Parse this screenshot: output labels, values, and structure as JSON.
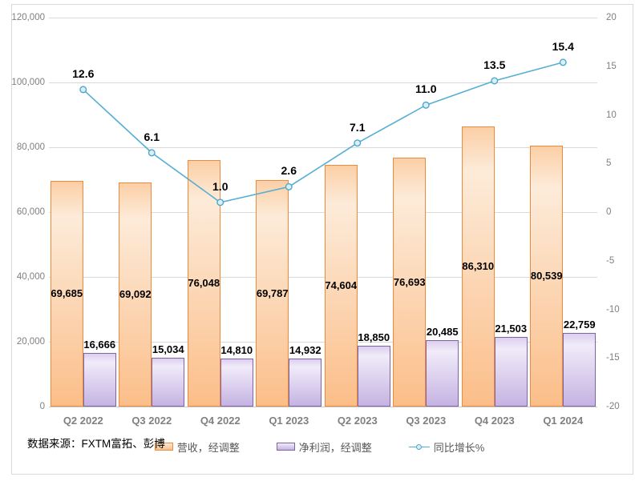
{
  "source_note": "数据来源：FXTM富拓、彭博",
  "chart_data": {
    "type": "combo",
    "title": "",
    "categories": [
      "Q2 2022",
      "Q3 2022",
      "Q4 2022",
      "Q1 2023",
      "Q2 2023",
      "Q3 2023",
      "Q4 2023",
      "Q1 2024"
    ],
    "series": [
      {
        "name": "营收，经调整",
        "type": "bar",
        "axis": "left",
        "values": [
          69685,
          69092,
          76048,
          69787,
          74604,
          76693,
          86310,
          80539
        ],
        "data_labels": [
          "69,685",
          "69,092",
          "76,048",
          "69,787",
          "74,604",
          "76,693",
          "86,310",
          "80,539"
        ],
        "label_position": "inside-center",
        "border_color": "#ED8A3C",
        "fill_top": "#FDEBD9",
        "fill_bottom": "#FBBE89"
      },
      {
        "name": "净利润，经调整",
        "type": "bar",
        "axis": "left",
        "values": [
          16666,
          15034,
          14810,
          14932,
          18850,
          20485,
          21503,
          22759
        ],
        "data_labels": [
          "16,666",
          "15,034",
          "14,810",
          "14,932",
          "18,850",
          "20,485",
          "21,503",
          "22,759"
        ],
        "label_position": "outside-end",
        "border_color": "#8064A2",
        "fill_top": "#F0EBF9",
        "fill_bottom": "#C5B3E2"
      },
      {
        "name": "同比增长%",
        "type": "line",
        "axis": "right",
        "values": [
          12.6,
          6.1,
          1.0,
          2.6,
          7.1,
          11.0,
          13.5,
          15.4
        ],
        "data_labels": [
          "12.6",
          "6.1",
          "1.0",
          "2.6",
          "7.1",
          "11.0",
          "13.5",
          "15.4"
        ],
        "line_color": "#56AFD3",
        "marker_fill": "#DCEEF7",
        "marker_border": "#4DA7CB"
      }
    ],
    "left_axis": {
      "min": 0,
      "max": 120000,
      "step": 20000,
      "tick_labels": [
        "0",
        "20,000",
        "40,000",
        "60,000",
        "80,000",
        "100,000",
        "120,000"
      ]
    },
    "right_axis": {
      "min": -20,
      "max": 20,
      "step": 5,
      "tick_labels": [
        "-20",
        "-15",
        "-10",
        "-5",
        "0",
        "5",
        "10",
        "15",
        "20"
      ]
    },
    "grid": true,
    "legend_position": "bottom"
  }
}
